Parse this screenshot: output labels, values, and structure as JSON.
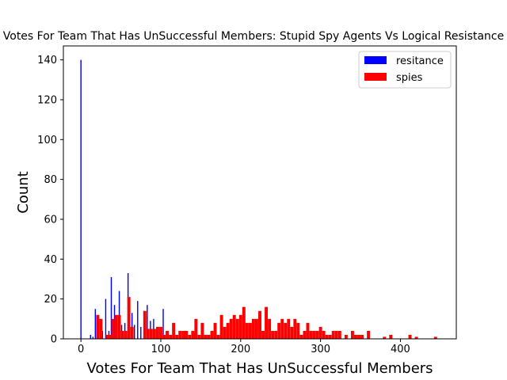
{
  "chart_data": {
    "type": "bar",
    "title": "Votes For Team That Has UnSuccessful Members: Stupid Spy Agents Vs Logical Resistance",
    "xlabel": "Votes For Team That Has UnSuccessful Members",
    "ylabel": "Count",
    "xlim": [
      -22,
      470
    ],
    "ylim": [
      0,
      147
    ],
    "x_ticks": [
      0,
      100,
      200,
      300,
      400
    ],
    "y_ticks": [
      0,
      20,
      40,
      60,
      80,
      100,
      120,
      140
    ],
    "grid": false,
    "legend_position": "top-right",
    "series": [
      {
        "name": "resitance",
        "color": "#0000ff",
        "bar_width": 1.4,
        "points": [
          {
            "x": 0,
            "y": 140
          },
          {
            "x": 12,
            "y": 2
          },
          {
            "x": 15,
            "y": 1
          },
          {
            "x": 18,
            "y": 15
          },
          {
            "x": 22,
            "y": 11
          },
          {
            "x": 27,
            "y": 4
          },
          {
            "x": 31,
            "y": 20
          },
          {
            "x": 35,
            "y": 4
          },
          {
            "x": 38,
            "y": 31
          },
          {
            "x": 42,
            "y": 17
          },
          {
            "x": 48,
            "y": 24
          },
          {
            "x": 51,
            "y": 7
          },
          {
            "x": 55,
            "y": 8
          },
          {
            "x": 59,
            "y": 33
          },
          {
            "x": 64,
            "y": 13
          },
          {
            "x": 67,
            "y": 7
          },
          {
            "x": 71,
            "y": 19
          },
          {
            "x": 75,
            "y": 6
          },
          {
            "x": 79,
            "y": 14
          },
          {
            "x": 83,
            "y": 17
          },
          {
            "x": 87,
            "y": 9
          },
          {
            "x": 91,
            "y": 10
          },
          {
            "x": 96,
            "y": 4
          },
          {
            "x": 103,
            "y": 15
          },
          {
            "x": 108,
            "y": 3
          },
          {
            "x": 115,
            "y": 2
          },
          {
            "x": 130,
            "y": 4
          },
          {
            "x": 142,
            "y": 3
          },
          {
            "x": 155,
            "y": 2
          }
        ]
      },
      {
        "name": "spies",
        "color": "#ff0000",
        "bar_width": 3.9,
        "points": [
          {
            "x": 21,
            "y": 12
          },
          {
            "x": 25,
            "y": 10
          },
          {
            "x": 33,
            "y": 2
          },
          {
            "x": 37,
            "y": 2
          },
          {
            "x": 40,
            "y": 10
          },
          {
            "x": 44,
            "y": 12
          },
          {
            "x": 48,
            "y": 12
          },
          {
            "x": 52,
            "y": 4
          },
          {
            "x": 56,
            "y": 4
          },
          {
            "x": 60,
            "y": 21
          },
          {
            "x": 64,
            "y": 6
          },
          {
            "x": 80,
            "y": 14
          },
          {
            "x": 84,
            "y": 5
          },
          {
            "x": 88,
            "y": 5
          },
          {
            "x": 92,
            "y": 5
          },
          {
            "x": 96,
            "y": 6
          },
          {
            "x": 100,
            "y": 6
          },
          {
            "x": 104,
            "y": 2
          },
          {
            "x": 108,
            "y": 4
          },
          {
            "x": 112,
            "y": 2
          },
          {
            "x": 116,
            "y": 8
          },
          {
            "x": 120,
            "y": 2
          },
          {
            "x": 124,
            "y": 4
          },
          {
            "x": 128,
            "y": 4
          },
          {
            "x": 132,
            "y": 4
          },
          {
            "x": 136,
            "y": 2
          },
          {
            "x": 140,
            "y": 4
          },
          {
            "x": 144,
            "y": 10
          },
          {
            "x": 148,
            "y": 2
          },
          {
            "x": 152,
            "y": 8
          },
          {
            "x": 156,
            "y": 2
          },
          {
            "x": 160,
            "y": 2
          },
          {
            "x": 164,
            "y": 4
          },
          {
            "x": 168,
            "y": 8
          },
          {
            "x": 172,
            "y": 2
          },
          {
            "x": 176,
            "y": 12
          },
          {
            "x": 180,
            "y": 6
          },
          {
            "x": 184,
            "y": 8
          },
          {
            "x": 188,
            "y": 10
          },
          {
            "x": 192,
            "y": 12
          },
          {
            "x": 196,
            "y": 10
          },
          {
            "x": 200,
            "y": 12
          },
          {
            "x": 204,
            "y": 16
          },
          {
            "x": 208,
            "y": 8
          },
          {
            "x": 212,
            "y": 8
          },
          {
            "x": 216,
            "y": 10
          },
          {
            "x": 220,
            "y": 10
          },
          {
            "x": 224,
            "y": 14
          },
          {
            "x": 228,
            "y": 4
          },
          {
            "x": 232,
            "y": 16
          },
          {
            "x": 236,
            "y": 10
          },
          {
            "x": 240,
            "y": 4
          },
          {
            "x": 244,
            "y": 4
          },
          {
            "x": 248,
            "y": 8
          },
          {
            "x": 252,
            "y": 10
          },
          {
            "x": 256,
            "y": 8
          },
          {
            "x": 260,
            "y": 10
          },
          {
            "x": 264,
            "y": 6
          },
          {
            "x": 268,
            "y": 10
          },
          {
            "x": 272,
            "y": 8
          },
          {
            "x": 276,
            "y": 2
          },
          {
            "x": 280,
            "y": 4
          },
          {
            "x": 284,
            "y": 8
          },
          {
            "x": 288,
            "y": 4
          },
          {
            "x": 292,
            "y": 4
          },
          {
            "x": 296,
            "y": 4
          },
          {
            "x": 300,
            "y": 6
          },
          {
            "x": 304,
            "y": 4
          },
          {
            "x": 308,
            "y": 2
          },
          {
            "x": 312,
            "y": 2
          },
          {
            "x": 316,
            "y": 4
          },
          {
            "x": 320,
            "y": 4
          },
          {
            "x": 324,
            "y": 4
          },
          {
            "x": 332,
            "y": 2
          },
          {
            "x": 340,
            "y": 4
          },
          {
            "x": 344,
            "y": 2
          },
          {
            "x": 348,
            "y": 2
          },
          {
            "x": 352,
            "y": 2
          },
          {
            "x": 360,
            "y": 4
          },
          {
            "x": 380,
            "y": 1
          },
          {
            "x": 388,
            "y": 2
          },
          {
            "x": 412,
            "y": 2
          },
          {
            "x": 420,
            "y": 1
          },
          {
            "x": 444,
            "y": 1
          }
        ]
      }
    ]
  }
}
